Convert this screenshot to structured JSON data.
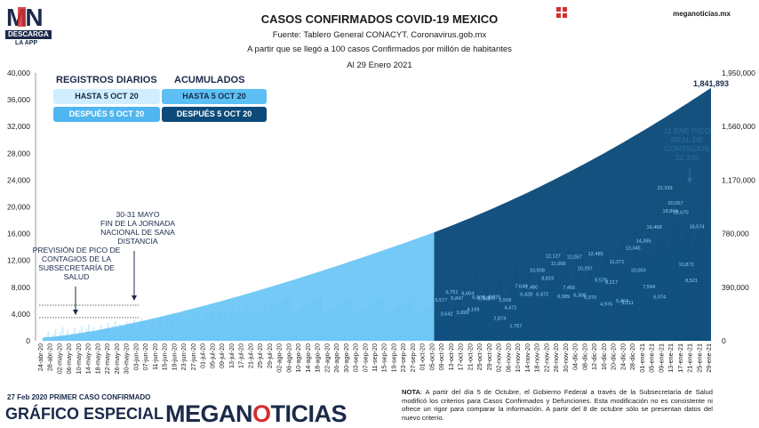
{
  "header": {
    "logo_mark": "MN",
    "logo_descarga": "DESCARGA",
    "logo_app": "LA APP",
    "title": "CASOS CONFIRMADOS COVID-19 MEXICO",
    "source": "Fuente: Tablero General CONACYT. Coronavirus.gob.mx",
    "criterion": "A partir que se llegó a 100 casos Confirmados por millón de habitantes",
    "as_of": "Al 29 Enero 2021",
    "site": "meganoticias.mx",
    "grid_icon": "grid-icon"
  },
  "legend": {
    "daily_title": "REGISTROS DIARIOS",
    "cumulative_title": "ACUMULADOS",
    "before_label": "HASTA 5 OCT 20",
    "after_label": "DESPUÉS 5 OCT 20",
    "colors": {
      "daily_before": "#cfeeff",
      "daily_after": "#4fb6f0",
      "cum_before": "#5cc0f5",
      "cum_after": "#0b4a7a"
    }
  },
  "annotations": {
    "left_pico": [
      "PREVISIÓN DE PICO DE",
      "CONTAGIOS DE LA",
      "SUBSECRETARÍA DE",
      "SALUD"
    ],
    "jornada": [
      "30-31 MAYO",
      "FIN DE LA JORNADA",
      "NACIONAL DE SANA",
      "DISTANCIA"
    ],
    "real_pico": [
      "11 ENE PICO",
      "REAL DE",
      "CONTAGIOS",
      "22,339"
    ],
    "final_total": "1,841,893"
  },
  "footer": {
    "first_case": "27 Feb 2020 PRIMER CASO CONFIRMADO",
    "grafico": "GRÁFICO ESPECIAL",
    "brand_pre": "MEGAN",
    "brand_o": "O",
    "brand_post": "TICIAS",
    "nota_label": "NOTA",
    "nota_text": ": A partir del día 5 de Octubre, el Gobierno Federal a través de la Subsecretaría de Salud modificó los criterios para Casos Confirmados y Defunciones. Esta modificación no es consistente ni ofrece un rigor para comparar la información. A partir del 8 de octubre sólo se presentan datos del nuevo criterio."
  },
  "chart_data": {
    "type": "bar",
    "title": "CASOS CONFIRMADOS COVID-19 MEXICO",
    "left_axis": {
      "ticks": [
        "40,000",
        "36,000",
        "32,000",
        "28,000",
        "24,000",
        "20,000",
        "16,000",
        "12,000",
        "8,000",
        "4,000",
        "0"
      ],
      "ylim": [
        0,
        40000
      ]
    },
    "right_axis": {
      "ticks": [
        "1,950,000",
        "1,560,000",
        "1,170,000",
        "780,000",
        "390,000",
        "0"
      ],
      "ylim": [
        0,
        1950000
      ]
    },
    "x_ticks": [
      "24-abr-20",
      "28-abr-20",
      "02-may-20",
      "06-may-20",
      "10-may-20",
      "14-may-20",
      "18-may-20",
      "22-may-20",
      "26-may-20",
      "30-may-20",
      "03-jun-20",
      "07-jun-20",
      "11-jun-20",
      "15-jun-20",
      "19-jun-20",
      "23-jun-20",
      "27-jun-20",
      "01-jul-20",
      "05-jul-20",
      "09-jul-20",
      "13-jul-20",
      "17-jul-20",
      "21-jul-20",
      "25-jul-20",
      "29-jul-20",
      "02-ago-20",
      "06-ago-20",
      "10-ago-20",
      "14-ago-20",
      "18-ago-20",
      "22-ago-20",
      "26-ago-20",
      "30-ago-20",
      "03-sep-20",
      "07-sep-20",
      "11-sep-20",
      "15-sep-20",
      "19-sep-20",
      "23-sep-20",
      "27-sep-20",
      "01-oct-20",
      "05-oct-20",
      "09-oct-20",
      "13-oct-20",
      "17-oct-20",
      "21-oct-20",
      "25-oct-20",
      "29-oct-20",
      "02-nov-20",
      "06-nov-20",
      "10-nov-20",
      "14-nov-20",
      "18-nov-20",
      "22-nov-20",
      "26-nov-20",
      "30-nov-20",
      "04-dic-20",
      "08-dic-20",
      "12-dic-20",
      "16-dic-20",
      "20-dic-20",
      "24-dic-20",
      "28-dic-20",
      "01-ene-21",
      "05-ene-21",
      "09-ene-21",
      "13-ene-21",
      "17-ene-21",
      "21-ene-21",
      "25-ene-21",
      "29-ene-21"
    ],
    "daily_labels": [
      "5,577",
      "3,542",
      "6,751",
      "5,847",
      "3,699",
      "6,604",
      "4,169",
      "6,000",
      "5,763",
      "5,931",
      "6,025",
      "2,874",
      "5,558",
      "4,472",
      "1,757",
      "7,646",
      "6,428",
      "7,480",
      "10,008",
      "6,472",
      "8,819",
      "12,127",
      "11,006",
      "6,089",
      "7,455",
      "12,057",
      "6,308",
      "10,297",
      "5,970",
      "12,485",
      "8,579",
      "4,976",
      "8,217",
      "11,271",
      "5,464",
      "5,211",
      "13,345",
      "10,003",
      "14,395",
      "7,594",
      "16,468",
      "6,074",
      "22,339",
      "18,894",
      "20,057",
      "18,670",
      "10,872",
      "8,521",
      "16,574"
    ],
    "cumulative": {
      "start": 0,
      "switch_date": "05-oct-20",
      "value_at_switch": 789780,
      "final": 1841893
    },
    "grid": false
  }
}
